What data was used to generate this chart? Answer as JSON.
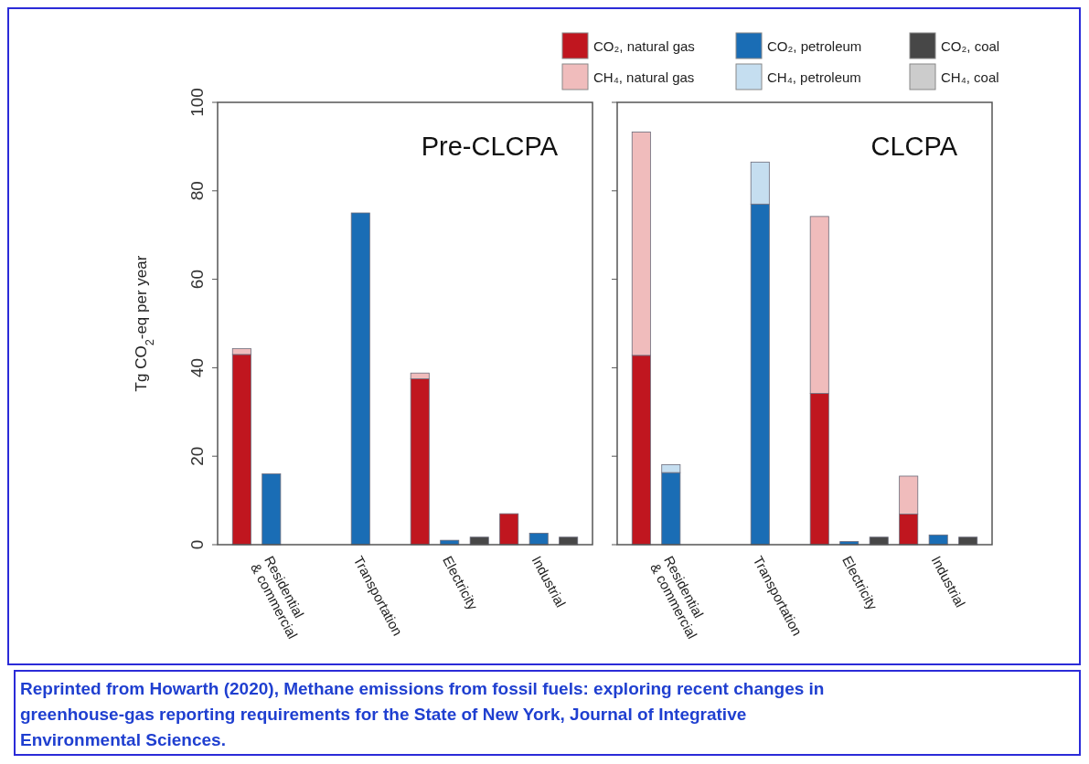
{
  "chart_data": [
    {
      "type": "bar",
      "title": "Pre-CLCPA",
      "ylabel": "Tg CO$_{2}$-eq per year",
      "categories": [
        null,
        "Residential & commercial",
        null,
        null,
        "Transportation",
        null,
        null,
        "Electricity",
        null,
        null,
        "Industrial",
        null
      ],
      "stacked": true,
      "ylim": [
        0,
        100
      ],
      "yticks": [
        0,
        20,
        40,
        60,
        80,
        100
      ],
      "series": [
        {
          "color": "#c0161f",
          "values": [
            43,
            null,
            null,
            null,
            null,
            null,
            37.5,
            null,
            null,
            7,
            null,
            null
          ]
        },
        {
          "color": "#f0bcbc",
          "values": [
            1.3,
            null,
            null,
            null,
            null,
            null,
            1.3,
            null,
            null,
            null,
            null,
            null
          ]
        },
        {
          "color": "#1a6db5",
          "values": [
            null,
            16,
            null,
            null,
            75,
            null,
            null,
            1,
            null,
            null,
            2.6,
            null
          ]
        },
        {
          "color": "#474747",
          "values": [
            null,
            null,
            null,
            null,
            null,
            null,
            null,
            null,
            1.7,
            null,
            null,
            1.7
          ]
        }
      ]
    },
    {
      "type": "bar",
      "title": "CLCPA",
      "categories": [
        null,
        "Residential & commercial",
        null,
        null,
        "Transportation",
        null,
        null,
        "Electricity",
        null,
        null,
        "Industrial",
        null
      ],
      "stacked": true,
      "ylim": [
        0,
        100
      ],
      "yticks": [
        0,
        20,
        40,
        60,
        80,
        100
      ],
      "tick_labels": "x",
      "legend": "top",
      "annotations": [
        "Reprinted from Howarth (2020), Methane emissions from fossil fuels: exploring recent changes in greenhouse-gas reporting requirements for the State of New York, Journal of Integrative Environmental Sciences."
      ],
      "series": [
        {
          "name": "CO₂, natural gas",
          "color": "#c0161f",
          "values": [
            42.8,
            null,
            null,
            null,
            null,
            null,
            34.2,
            null,
            null,
            6.9,
            null,
            null
          ]
        },
        {
          "name": "CH₄, natural gas",
          "color": "#f0bcbc",
          "values": [
            50.5,
            null,
            null,
            null,
            null,
            null,
            40,
            null,
            null,
            8.6,
            null,
            null
          ]
        },
        {
          "name": "CO₂, petroleum",
          "color": "#1a6db5",
          "values": [
            null,
            16.3,
            null,
            null,
            77,
            null,
            null,
            0.7,
            null,
            null,
            2.2,
            null
          ]
        },
        {
          "name": "CH₄, petroleum",
          "color": "#c5def0",
          "values": [
            null,
            1.8,
            null,
            null,
            9.5,
            null,
            null,
            null,
            null,
            null,
            null,
            null
          ]
        },
        {
          "name": "CO₂, coal",
          "color": "#474747",
          "values": [
            null,
            null,
            null,
            null,
            null,
            null,
            null,
            null,
            1.7,
            null,
            null,
            1.7
          ]
        },
        {
          "name": "CH₄, coal",
          "color": "#cccccc",
          "values": [
            null,
            null,
            null,
            null,
            null,
            null,
            null,
            null,
            null,
            null,
            null,
            null
          ]
        }
      ]
    }
  ]
}
